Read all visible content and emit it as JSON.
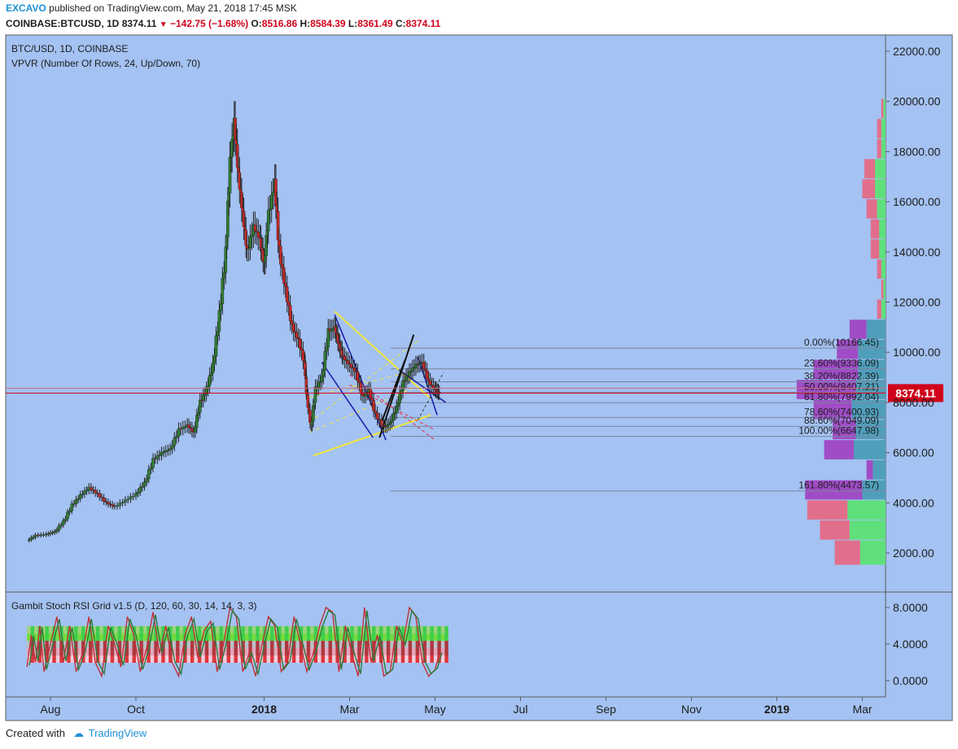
{
  "header": {
    "publisher": "EXCAVO",
    "published_text": "published on TradingView.com, May 21, 2018 17:45 MSK",
    "symbol": "COINBASE:BTCUSD, 1D",
    "last": "8374.11",
    "change": "−142.75 (−1.68%)",
    "o_label": "O:",
    "o": "8516.86",
    "h_label": "H:",
    "h": "8584.39",
    "l_label": "L:",
    "l": "8361.49",
    "c_label": "C:",
    "c": "8374.11"
  },
  "footer": {
    "created_with": "Created with",
    "brand": "TradingView"
  },
  "colors": {
    "background": "#a4c2f2",
    "panel_border": "#5c5c5c",
    "candle_up": "#2e7d32",
    "candle_down": "#c62828",
    "price_line": "#d0021b",
    "vp_up": "#e16f8b",
    "vp_down": "#5fe07c",
    "vp_value_area_up": "#a04cc6",
    "vp_value_area_down": "#4f9fbb",
    "fib_triangle": "#f0e63c",
    "blue_lines": "#1a1aaa",
    "black_lines": "#111111"
  },
  "chart_data": [
    {
      "type": "candlestick",
      "title": "BTC/USD, 1D, COINBASE",
      "indicator": "VPVR (Number Of Rows, 24, Up/Down, 70)",
      "x_labels": [
        "Aug",
        "Oct",
        "2018",
        "Mar",
        "May",
        "Jul",
        "Sep",
        "Nov",
        "2019",
        "Mar"
      ],
      "x_label_positions_months": [
        0,
        2,
        5,
        7,
        9,
        11,
        13,
        15,
        17,
        19
      ],
      "y_ticks": [
        "2000.00",
        "4000.00",
        "6000.00",
        "8000.00",
        "10000.00",
        "12000.00",
        "14000.00",
        "16000.00",
        "18000.00",
        "20000.00",
        "22000.00"
      ],
      "ylim": [
        600,
        23000
      ],
      "last_price": "8374.11",
      "price_series_estimated": {
        "series": [
          {
            "name": "close",
            "points": [
              [
                -0.55,
                2500
              ],
              [
                -0.35,
                2700
              ],
              [
                -0.1,
                2750
              ],
              [
                0.1,
                2850
              ],
              [
                0.3,
                3250
              ],
              [
                0.5,
                3900
              ],
              [
                0.7,
                4300
              ],
              [
                0.9,
                4600
              ],
              [
                1.1,
                4350
              ],
              [
                1.3,
                4000
              ],
              [
                1.5,
                3850
              ],
              [
                1.75,
                4100
              ],
              [
                2.0,
                4350
              ],
              [
                2.2,
                4800
              ],
              [
                2.4,
                5700
              ],
              [
                2.6,
                6000
              ],
              [
                2.8,
                6150
              ],
              [
                3.0,
                6900
              ],
              [
                3.2,
                7100
              ],
              [
                3.35,
                6800
              ],
              [
                3.5,
                8000
              ],
              [
                3.65,
                8500
              ],
              [
                3.8,
                9500
              ],
              [
                3.95,
                11500
              ],
              [
                4.1,
                14000
              ],
              [
                4.2,
                17500
              ],
              [
                4.3,
                19200
              ],
              [
                4.4,
                17000
              ],
              [
                4.5,
                15500
              ],
              [
                4.6,
                14000
              ],
              [
                4.75,
                15000
              ],
              [
                4.9,
                14500
              ],
              [
                5.0,
                13500
              ],
              [
                5.1,
                15500
              ],
              [
                5.25,
                16800
              ],
              [
                5.35,
                14000
              ],
              [
                5.5,
                12500
              ],
              [
                5.65,
                11000
              ],
              [
                5.8,
                10500
              ],
              [
                5.95,
                9500
              ],
              [
                6.0,
                8200
              ],
              [
                6.1,
                7000
              ],
              [
                6.2,
                8500
              ],
              [
                6.35,
                9000
              ],
              [
                6.5,
                10800
              ],
              [
                6.65,
                11000
              ],
              [
                6.75,
                10300
              ],
              [
                6.85,
                9800
              ],
              [
                7.0,
                9500
              ],
              [
                7.15,
                9200
              ],
              [
                7.3,
                8200
              ],
              [
                7.45,
                8500
              ],
              [
                7.6,
                7500
              ],
              [
                7.8,
                7000
              ],
              [
                7.95,
                7200
              ],
              [
                8.1,
                7800
              ],
              [
                8.25,
                8800
              ],
              [
                8.4,
                9200
              ],
              [
                8.55,
                9500
              ],
              [
                8.7,
                9600
              ],
              [
                8.85,
                8800
              ],
              [
                9.0,
                8500
              ],
              [
                9.1,
                8374
              ]
            ]
          }
        ]
      },
      "volume_profile_rows": [
        {
          "price_low": 1500,
          "price_high": 2500,
          "up": 12,
          "down": 12
        },
        {
          "price_low": 2500,
          "price_high": 3300,
          "up": 14,
          "down": 17
        },
        {
          "price_low": 3300,
          "price_high": 4100,
          "up": 19,
          "down": 18
        },
        {
          "price_low": 4100,
          "price_high": 4900,
          "up": 27,
          "down": 11,
          "value_area": true
        },
        {
          "price_low": 4900,
          "price_high": 5700,
          "up": 3,
          "down": 6,
          "value_area": true
        },
        {
          "price_low": 5700,
          "price_high": 6500,
          "up": 14,
          "down": 15,
          "value_area": true
        },
        {
          "price_low": 6500,
          "price_high": 7300,
          "up": 11,
          "down": 14,
          "value_area": true
        },
        {
          "price_low": 7300,
          "price_high": 8100,
          "up": 18,
          "down": 16,
          "value_area": true
        },
        {
          "price_low": 8100,
          "price_high": 8900,
          "up": 28,
          "down": 14,
          "value_area": true
        },
        {
          "price_low": 8900,
          "price_high": 9700,
          "up": 21,
          "down": 13,
          "value_area": true
        },
        {
          "price_low": 9700,
          "price_high": 10500,
          "up": 10,
          "down": 13,
          "value_area": true
        },
        {
          "price_low": 10500,
          "price_high": 11300,
          "up": 8,
          "down": 9,
          "value_area": true
        },
        {
          "price_low": 11300,
          "price_high": 12100,
          "up": 2,
          "down": 2
        },
        {
          "price_low": 12100,
          "price_high": 12900,
          "up": 1,
          "down": 1
        },
        {
          "price_low": 12900,
          "price_high": 13700,
          "up": 2,
          "down": 2
        },
        {
          "price_low": 13700,
          "price_high": 14500,
          "up": 4,
          "down": 3
        },
        {
          "price_low": 14500,
          "price_high": 15300,
          "up": 4,
          "down": 3
        },
        {
          "price_low": 15300,
          "price_high": 16100,
          "up": 5,
          "down": 4
        },
        {
          "price_low": 16100,
          "price_high": 16900,
          "up": 6,
          "down": 5
        },
        {
          "price_low": 16900,
          "price_high": 17700,
          "up": 5,
          "down": 5
        },
        {
          "price_low": 17700,
          "price_high": 18500,
          "up": 2,
          "down": 2
        },
        {
          "price_low": 18500,
          "price_high": 19300,
          "up": 2,
          "down": 2
        },
        {
          "price_low": 19300,
          "price_high": 20100,
          "up": 1,
          "down": 1
        }
      ],
      "fib_levels": [
        {
          "label": "0.00%(10166.45)",
          "price": 10166.45
        },
        {
          "label": "23.60%(9336.09)",
          "price": 9336.09
        },
        {
          "label": "38.20%(8822.39)",
          "price": 8822.39
        },
        {
          "label": "50.00%(8407.21)",
          "price": 8407.21
        },
        {
          "label": "61.80%(7992.04)",
          "price": 7992.04
        },
        {
          "label": "78.60%(7400.93)",
          "price": 7400.93
        },
        {
          "label": "88.60%(7049.09)",
          "price": 7049.09
        },
        {
          "label": "100.00%(6647.98)",
          "price": 6647.98
        },
        {
          "label": "161.80%(4473.57)",
          "price": 4473.57
        }
      ]
    },
    {
      "type": "line",
      "title": "Gambit Stoch RSI Grid v1.5 (D, 120, 60, 30, 14, 14, 3, 3)",
      "y_ticks": [
        "0.0000",
        "4.0000",
        "8.0000"
      ],
      "ylim": [
        -1.8,
        9.7
      ],
      "series": [
        {
          "points_estimated": [
            [
              -0.55,
              1.5
            ],
            [
              -0.45,
              5
            ],
            [
              -0.35,
              2
            ],
            [
              -0.25,
              6
            ],
            [
              -0.15,
              1
            ],
            [
              0.0,
              4
            ],
            [
              0.15,
              7
            ],
            [
              0.3,
              2
            ],
            [
              0.45,
              6
            ],
            [
              0.6,
              1
            ],
            [
              0.75,
              3
            ],
            [
              0.9,
              7
            ],
            [
              1.05,
              2
            ],
            [
              1.2,
              0.5
            ],
            [
              1.35,
              6
            ],
            [
              1.5,
              4
            ],
            [
              1.65,
              1.5
            ],
            [
              1.8,
              7
            ],
            [
              1.95,
              5
            ],
            [
              2.1,
              1
            ],
            [
              2.25,
              3.5
            ],
            [
              2.4,
              7.5
            ],
            [
              2.55,
              3
            ],
            [
              2.7,
              6
            ],
            [
              2.85,
              2
            ],
            [
              3.0,
              0.5
            ],
            [
              3.15,
              5
            ],
            [
              3.3,
              7
            ],
            [
              3.45,
              2.5
            ],
            [
              3.6,
              5.5
            ],
            [
              3.75,
              6.5
            ],
            [
              3.9,
              1
            ],
            [
              4.05,
              4
            ],
            [
              4.2,
              8
            ],
            [
              4.35,
              7
            ],
            [
              4.5,
              1
            ],
            [
              4.65,
              3
            ],
            [
              4.8,
              0.5
            ],
            [
              4.95,
              4
            ],
            [
              5.1,
              7
            ],
            [
              5.25,
              6
            ],
            [
              5.4,
              1
            ],
            [
              5.55,
              2
            ],
            [
              5.7,
              7
            ],
            [
              5.85,
              4
            ],
            [
              6.0,
              1
            ],
            [
              6.15,
              3
            ],
            [
              6.3,
              6
            ],
            [
              6.45,
              8
            ],
            [
              6.6,
              7.5
            ],
            [
              6.75,
              1
            ],
            [
              6.9,
              6
            ],
            [
              7.05,
              3
            ],
            [
              7.2,
              0.5
            ],
            [
              7.35,
              8
            ],
            [
              7.5,
              2
            ],
            [
              7.65,
              5
            ],
            [
              7.8,
              0.5
            ],
            [
              7.95,
              1
            ],
            [
              8.1,
              6
            ],
            [
              8.25,
              4
            ],
            [
              8.4,
              8
            ],
            [
              8.55,
              7
            ],
            [
              8.7,
              2
            ],
            [
              8.85,
              0.5
            ],
            [
              9.0,
              1.2
            ],
            [
              9.1,
              3
            ]
          ]
        }
      ]
    }
  ]
}
